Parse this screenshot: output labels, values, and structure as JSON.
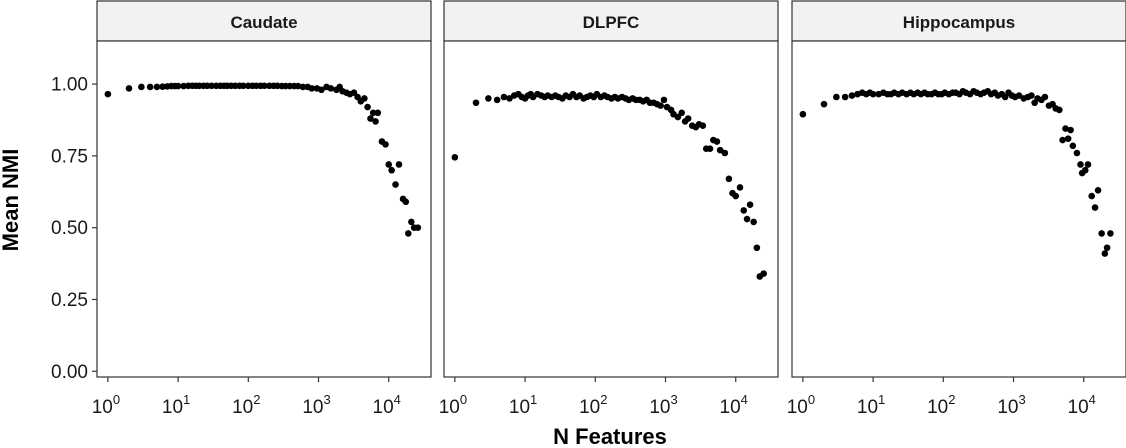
{
  "chart_data": {
    "type": "scatter",
    "xlabel": "N Features",
    "ylabel": "Mean NMI",
    "x_scale": "log10",
    "xlim": [
      0.7,
      40000
    ],
    "ylim": [
      -0.02,
      1.15
    ],
    "x_ticks": [
      {
        "value": 1,
        "base": "10",
        "exp": "0"
      },
      {
        "value": 10,
        "base": "10",
        "exp": "1"
      },
      {
        "value": 100,
        "base": "10",
        "exp": "2"
      },
      {
        "value": 1000,
        "base": "10",
        "exp": "3"
      },
      {
        "value": 10000,
        "base": "10",
        "exp": "4"
      }
    ],
    "y_ticks": [
      {
        "value": 0.0,
        "label": "0.00"
      },
      {
        "value": 0.25,
        "label": "0.25"
      },
      {
        "value": 0.5,
        "label": "0.50"
      },
      {
        "value": 0.75,
        "label": "0.75"
      },
      {
        "value": 1.0,
        "label": "1.00"
      }
    ],
    "panels": [
      {
        "name": "Caudate",
        "points": [
          [
            1,
            0.965
          ],
          [
            2,
            0.985
          ],
          [
            3,
            0.99
          ],
          [
            4,
            0.99
          ],
          [
            5,
            0.99
          ],
          [
            6,
            0.991
          ],
          [
            7,
            0.992
          ],
          [
            8,
            0.993
          ],
          [
            9,
            0.993
          ],
          [
            10,
            0.993
          ],
          [
            12,
            0.993
          ],
          [
            14,
            0.994
          ],
          [
            16,
            0.994
          ],
          [
            18,
            0.994
          ],
          [
            20,
            0.994
          ],
          [
            23,
            0.994
          ],
          [
            26,
            0.994
          ],
          [
            30,
            0.994
          ],
          [
            35,
            0.994
          ],
          [
            40,
            0.994
          ],
          [
            45,
            0.994
          ],
          [
            50,
            0.994
          ],
          [
            57,
            0.994
          ],
          [
            65,
            0.994
          ],
          [
            75,
            0.994
          ],
          [
            85,
            0.994
          ],
          [
            100,
            0.994
          ],
          [
            115,
            0.994
          ],
          [
            130,
            0.994
          ],
          [
            150,
            0.994
          ],
          [
            170,
            0.994
          ],
          [
            200,
            0.994
          ],
          [
            230,
            0.994
          ],
          [
            260,
            0.994
          ],
          [
            300,
            0.993
          ],
          [
            340,
            0.993
          ],
          [
            390,
            0.993
          ],
          [
            450,
            0.993
          ],
          [
            510,
            0.993
          ],
          [
            600,
            0.99
          ],
          [
            700,
            0.99
          ],
          [
            800,
            0.985
          ],
          [
            950,
            0.985
          ],
          [
            1100,
            0.98
          ],
          [
            1300,
            0.99
          ],
          [
            1500,
            0.985
          ],
          [
            1800,
            0.98
          ],
          [
            2000,
            0.99
          ],
          [
            2200,
            0.975
          ],
          [
            2500,
            0.97
          ],
          [
            2800,
            0.965
          ],
          [
            3200,
            0.97
          ],
          [
            3600,
            0.955
          ],
          [
            4000,
            0.94
          ],
          [
            4500,
            0.95
          ],
          [
            5000,
            0.92
          ],
          [
            5500,
            0.88
          ],
          [
            6000,
            0.9
          ],
          [
            6500,
            0.87
          ],
          [
            7000,
            0.9
          ],
          [
            8000,
            0.8
          ],
          [
            9000,
            0.79
          ],
          [
            10000,
            0.72
          ],
          [
            11000,
            0.7
          ],
          [
            12500,
            0.65
          ],
          [
            14000,
            0.72
          ],
          [
            16000,
            0.6
          ],
          [
            17500,
            0.59
          ],
          [
            19000,
            0.48
          ],
          [
            21000,
            0.52
          ],
          [
            23000,
            0.5
          ],
          [
            26000,
            0.5
          ]
        ]
      },
      {
        "name": "DLPFC",
        "points": [
          [
            1,
            0.745
          ],
          [
            2,
            0.935
          ],
          [
            3,
            0.95
          ],
          [
            4,
            0.945
          ],
          [
            5,
            0.955
          ],
          [
            6,
            0.95
          ],
          [
            7,
            0.96
          ],
          [
            8,
            0.965
          ],
          [
            9,
            0.955
          ],
          [
            10,
            0.95
          ],
          [
            11,
            0.96
          ],
          [
            12,
            0.965
          ],
          [
            13,
            0.955
          ],
          [
            15,
            0.965
          ],
          [
            17,
            0.96
          ],
          [
            19,
            0.955
          ],
          [
            21,
            0.96
          ],
          [
            24,
            0.955
          ],
          [
            27,
            0.96
          ],
          [
            30,
            0.955
          ],
          [
            34,
            0.95
          ],
          [
            38,
            0.96
          ],
          [
            43,
            0.955
          ],
          [
            48,
            0.965
          ],
          [
            54,
            0.955
          ],
          [
            60,
            0.96
          ],
          [
            68,
            0.95
          ],
          [
            76,
            0.955
          ],
          [
            85,
            0.96
          ],
          [
            95,
            0.955
          ],
          [
            105,
            0.965
          ],
          [
            120,
            0.955
          ],
          [
            135,
            0.96
          ],
          [
            150,
            0.955
          ],
          [
            170,
            0.95
          ],
          [
            190,
            0.955
          ],
          [
            210,
            0.95
          ],
          [
            240,
            0.955
          ],
          [
            270,
            0.95
          ],
          [
            300,
            0.945
          ],
          [
            340,
            0.95
          ],
          [
            380,
            0.945
          ],
          [
            430,
            0.945
          ],
          [
            480,
            0.94
          ],
          [
            540,
            0.945
          ],
          [
            600,
            0.935
          ],
          [
            680,
            0.935
          ],
          [
            760,
            0.93
          ],
          [
            850,
            0.925
          ],
          [
            950,
            0.945
          ],
          [
            1050,
            0.92
          ],
          [
            1200,
            0.91
          ],
          [
            1300,
            0.895
          ],
          [
            1500,
            0.885
          ],
          [
            1700,
            0.9
          ],
          [
            1900,
            0.87
          ],
          [
            2100,
            0.88
          ],
          [
            2400,
            0.855
          ],
          [
            2700,
            0.85
          ],
          [
            3000,
            0.86
          ],
          [
            3400,
            0.855
          ],
          [
            3800,
            0.775
          ],
          [
            4300,
            0.775
          ],
          [
            4800,
            0.805
          ],
          [
            5400,
            0.8
          ],
          [
            6000,
            0.77
          ],
          [
            7000,
            0.76
          ],
          [
            8000,
            0.67
          ],
          [
            9000,
            0.62
          ],
          [
            10000,
            0.61
          ],
          [
            11500,
            0.64
          ],
          [
            13000,
            0.56
          ],
          [
            14500,
            0.53
          ],
          [
            16000,
            0.58
          ],
          [
            18000,
            0.52
          ],
          [
            20000,
            0.43
          ],
          [
            22000,
            0.33
          ],
          [
            25000,
            0.34
          ]
        ]
      },
      {
        "name": "Hippocampus",
        "points": [
          [
            1,
            0.895
          ],
          [
            2,
            0.93
          ],
          [
            3,
            0.955
          ],
          [
            4,
            0.955
          ],
          [
            5,
            0.96
          ],
          [
            6,
            0.965
          ],
          [
            7,
            0.97
          ],
          [
            8,
            0.965
          ],
          [
            9,
            0.97
          ],
          [
            10,
            0.965
          ],
          [
            12,
            0.965
          ],
          [
            14,
            0.97
          ],
          [
            16,
            0.965
          ],
          [
            18,
            0.965
          ],
          [
            20,
            0.97
          ],
          [
            23,
            0.965
          ],
          [
            26,
            0.97
          ],
          [
            30,
            0.965
          ],
          [
            34,
            0.97
          ],
          [
            38,
            0.965
          ],
          [
            43,
            0.97
          ],
          [
            48,
            0.965
          ],
          [
            54,
            0.97
          ],
          [
            60,
            0.965
          ],
          [
            68,
            0.965
          ],
          [
            76,
            0.97
          ],
          [
            85,
            0.965
          ],
          [
            95,
            0.965
          ],
          [
            105,
            0.97
          ],
          [
            120,
            0.965
          ],
          [
            135,
            0.97
          ],
          [
            150,
            0.97
          ],
          [
            170,
            0.965
          ],
          [
            190,
            0.975
          ],
          [
            210,
            0.97
          ],
          [
            240,
            0.965
          ],
          [
            270,
            0.975
          ],
          [
            300,
            0.97
          ],
          [
            340,
            0.965
          ],
          [
            380,
            0.97
          ],
          [
            430,
            0.975
          ],
          [
            480,
            0.965
          ],
          [
            540,
            0.97
          ],
          [
            600,
            0.96
          ],
          [
            680,
            0.965
          ],
          [
            760,
            0.955
          ],
          [
            850,
            0.97
          ],
          [
            950,
            0.96
          ],
          [
            1050,
            0.955
          ],
          [
            1200,
            0.96
          ],
          [
            1400,
            0.95
          ],
          [
            1600,
            0.955
          ],
          [
            1800,
            0.96
          ],
          [
            2000,
            0.935
          ],
          [
            2200,
            0.95
          ],
          [
            2500,
            0.945
          ],
          [
            2800,
            0.955
          ],
          [
            3200,
            0.925
          ],
          [
            3600,
            0.93
          ],
          [
            4000,
            0.915
          ],
          [
            4500,
            0.91
          ],
          [
            5000,
            0.805
          ],
          [
            5500,
            0.845
          ],
          [
            6000,
            0.81
          ],
          [
            6500,
            0.84
          ],
          [
            7000,
            0.785
          ],
          [
            8000,
            0.76
          ],
          [
            9000,
            0.72
          ],
          [
            9500,
            0.69
          ],
          [
            10500,
            0.7
          ],
          [
            11500,
            0.72
          ],
          [
            13000,
            0.61
          ],
          [
            14500,
            0.57
          ],
          [
            16000,
            0.63
          ],
          [
            18000,
            0.48
          ],
          [
            20000,
            0.41
          ],
          [
            21500,
            0.43
          ],
          [
            24000,
            0.48
          ]
        ]
      }
    ]
  }
}
